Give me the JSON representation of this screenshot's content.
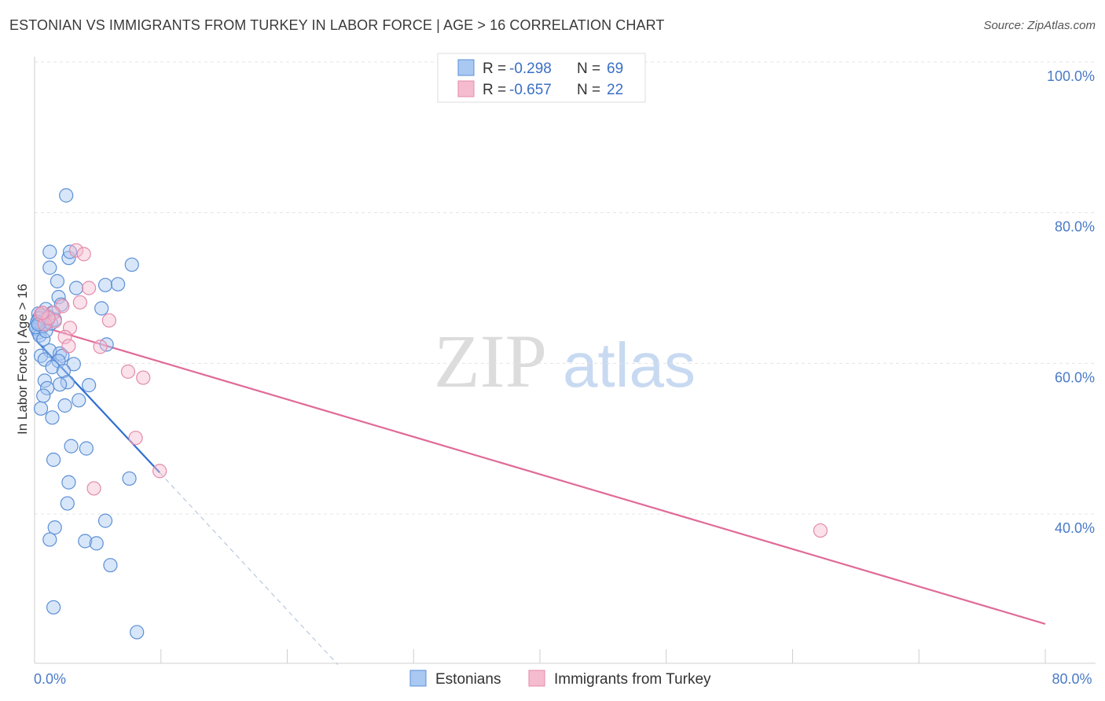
{
  "header": {
    "title": "ESTONIAN VS IMMIGRANTS FROM TURKEY IN LABOR FORCE | AGE > 16 CORRELATION CHART",
    "source": "Source: ZipAtlas.com"
  },
  "watermark": {
    "zip": "ZIP",
    "atlas": "atlas"
  },
  "colors": {
    "blue_fill": "#a9c8f2",
    "blue_stroke": "#5b8fd6",
    "blue_line": "#2f6fd0",
    "pink_fill": "#f5bcd0",
    "pink_stroke": "#e38aaa",
    "pink_line": "#e06b98",
    "tick_color": "#4a7ac8"
  },
  "chart_data": {
    "type": "scatter",
    "title": "ESTONIAN VS IMMIGRANTS FROM TURKEY IN LABOR FORCE | AGE > 16 CORRELATION CHART",
    "ylabel": "In Labor Force | Age > 16",
    "xlabel": "",
    "xlim": [
      0,
      0.8
    ],
    "ylim": [
      0.2,
      1.04
    ],
    "x_ticks": [
      {
        "value": 0,
        "label": "0.0%"
      },
      {
        "value": 0.8,
        "label": "80.0%"
      }
    ],
    "y_ticks": [
      {
        "value": 0.4,
        "label": "40.0%"
      },
      {
        "value": 0.6,
        "label": "60.0%"
      },
      {
        "value": 0.8,
        "label": "80.0%"
      },
      {
        "value": 1.0,
        "label": "100.0%"
      }
    ],
    "grid": true,
    "legend": {
      "placement": "top-center",
      "entries": [
        {
          "r_label": "R = ",
          "r_value": "-0.298",
          "n_label": "N = ",
          "n_value": "69"
        },
        {
          "r_label": "R = ",
          "r_value": "-0.657",
          "n_label": "N = ",
          "n_value": "22"
        }
      ]
    },
    "series": [
      {
        "name": "Estonians",
        "color": "#5b8fd6",
        "points": [
          [
            0.025,
            0.823
          ],
          [
            0.012,
            0.748
          ],
          [
            0.027,
            0.74
          ],
          [
            0.028,
            0.748
          ],
          [
            0.077,
            0.731
          ],
          [
            0.012,
            0.727
          ],
          [
            0.018,
            0.709
          ],
          [
            0.033,
            0.7
          ],
          [
            0.056,
            0.704
          ],
          [
            0.066,
            0.705
          ],
          [
            0.019,
            0.688
          ],
          [
            0.021,
            0.678
          ],
          [
            0.053,
            0.673
          ],
          [
            0.009,
            0.672
          ],
          [
            0.014,
            0.667
          ],
          [
            0.005,
            0.663
          ],
          [
            0.003,
            0.659
          ],
          [
            0.008,
            0.658
          ],
          [
            0.01,
            0.655
          ],
          [
            0.004,
            0.652
          ],
          [
            0.006,
            0.648
          ],
          [
            0.002,
            0.645
          ],
          [
            0.003,
            0.641
          ],
          [
            0.004,
            0.637
          ],
          [
            0.007,
            0.632
          ],
          [
            0.057,
            0.625
          ],
          [
            0.012,
            0.617
          ],
          [
            0.02,
            0.613
          ],
          [
            0.022,
            0.61
          ],
          [
            0.005,
            0.61
          ],
          [
            0.008,
            0.605
          ],
          [
            0.019,
            0.603
          ],
          [
            0.031,
            0.599
          ],
          [
            0.014,
            0.595
          ],
          [
            0.023,
            0.59
          ],
          [
            0.008,
            0.577
          ],
          [
            0.026,
            0.575
          ],
          [
            0.02,
            0.572
          ],
          [
            0.043,
            0.571
          ],
          [
            0.01,
            0.567
          ],
          [
            0.007,
            0.557
          ],
          [
            0.035,
            0.551
          ],
          [
            0.024,
            0.544
          ],
          [
            0.005,
            0.54
          ],
          [
            0.014,
            0.528
          ],
          [
            0.029,
            0.49
          ],
          [
            0.041,
            0.487
          ],
          [
            0.015,
            0.472
          ],
          [
            0.075,
            0.447
          ],
          [
            0.027,
            0.442
          ],
          [
            0.026,
            0.414
          ],
          [
            0.056,
            0.391
          ],
          [
            0.016,
            0.382
          ],
          [
            0.012,
            0.366
          ],
          [
            0.04,
            0.364
          ],
          [
            0.049,
            0.361
          ],
          [
            0.06,
            0.332
          ],
          [
            0.015,
            0.276
          ],
          [
            0.081,
            0.243
          ],
          [
            0.003,
            0.666
          ],
          [
            0.004,
            0.66
          ],
          [
            0.006,
            0.65
          ],
          [
            0.002,
            0.655
          ],
          [
            0.011,
            0.662
          ],
          [
            0.001,
            0.648
          ],
          [
            0.009,
            0.643
          ],
          [
            0.013,
            0.653
          ],
          [
            0.016,
            0.658
          ],
          [
            0.003,
            0.652
          ]
        ]
      },
      {
        "name": "Immigrants from Turkey",
        "color": "#e38aaa",
        "points": [
          [
            0.033,
            0.75
          ],
          [
            0.039,
            0.745
          ],
          [
            0.043,
            0.7
          ],
          [
            0.036,
            0.681
          ],
          [
            0.022,
            0.676
          ],
          [
            0.015,
            0.667
          ],
          [
            0.005,
            0.665
          ],
          [
            0.059,
            0.657
          ],
          [
            0.016,
            0.656
          ],
          [
            0.008,
            0.652
          ],
          [
            0.011,
            0.66
          ],
          [
            0.028,
            0.647
          ],
          [
            0.024,
            0.635
          ],
          [
            0.052,
            0.622
          ],
          [
            0.027,
            0.623
          ],
          [
            0.074,
            0.589
          ],
          [
            0.086,
            0.581
          ],
          [
            0.08,
            0.501
          ],
          [
            0.099,
            0.457
          ],
          [
            0.047,
            0.434
          ],
          [
            0.622,
            0.378
          ],
          [
            0.006,
            0.667
          ]
        ]
      }
    ],
    "trendlines": [
      {
        "series": "Estonians",
        "x": [
          0.001,
          0.099
        ],
        "y": [
          0.631,
          0.455
        ],
        "style": "solid"
      },
      {
        "series": "Estonians",
        "x": [
          0.099,
          0.24
        ],
        "y": [
          0.455,
          0.2
        ],
        "style": "dashed"
      },
      {
        "series": "Immigrants from Turkey",
        "x": [
          0.001,
          0.8
        ],
        "y": [
          0.651,
          0.254
        ],
        "style": "solid"
      }
    ]
  }
}
